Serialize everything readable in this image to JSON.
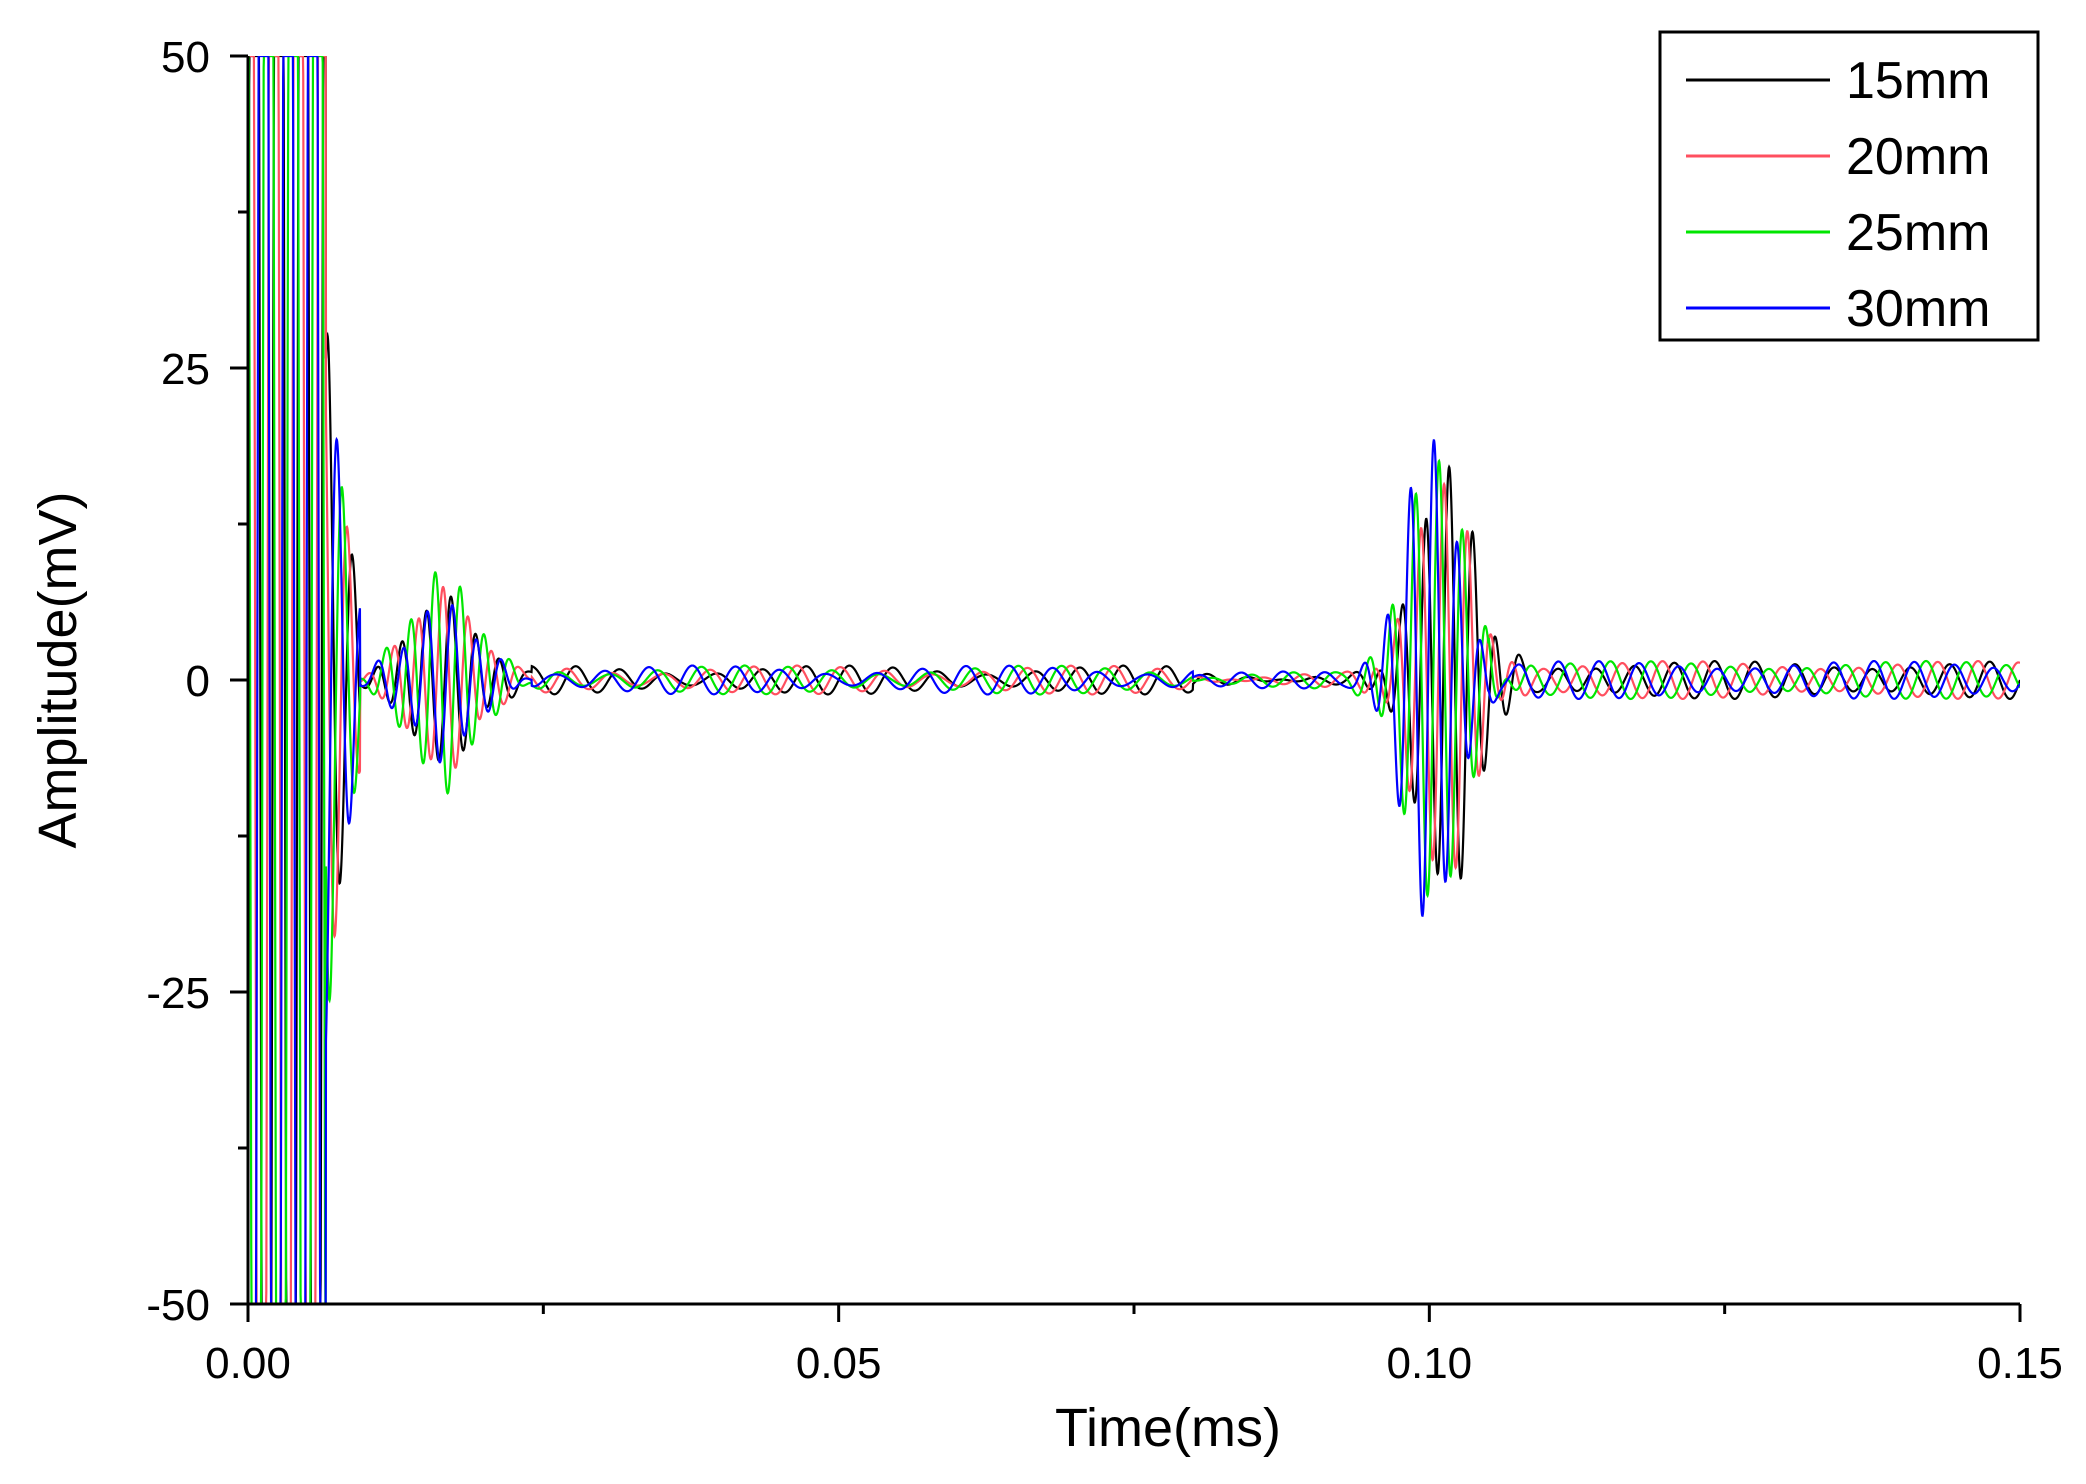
{
  "chart_data": {
    "type": "line",
    "xlabel": "Time(ms)",
    "ylabel": "Amplitude(mV)",
    "xlim": [
      0.0,
      0.15
    ],
    "ylim": [
      -50,
      50
    ],
    "x_ticks": [
      0.0,
      0.05,
      0.1,
      0.15
    ],
    "x_tick_labels": [
      "0.00",
      "0.05",
      "0.10",
      "0.15"
    ],
    "x_minor_step": 0.025,
    "y_ticks": [
      -50,
      -25,
      0,
      25,
      50
    ],
    "y_tick_labels": [
      "-50",
      "-25",
      "0",
      "25",
      "50"
    ],
    "y_minor_step": 12.5,
    "grid": false,
    "legend_position": "top-right",
    "series": [
      {
        "name": "15mm",
        "color": "#000000",
        "features": {
          "burst_center_ms": 0.1015,
          "burst_peak_mV": 17,
          "burst_width_ms": 0.0045,
          "ring_amp_mV": 6.5
        }
      },
      {
        "name": "20mm",
        "color": "#ff4f5f",
        "features": {
          "burst_center_ms": 0.1012,
          "burst_peak_mV": 16,
          "burst_width_ms": 0.0045,
          "ring_amp_mV": 7
        }
      },
      {
        "name": "25mm",
        "color": "#00e600",
        "features": {
          "burst_center_ms": 0.1005,
          "burst_peak_mV": 18,
          "burst_width_ms": 0.0045,
          "ring_amp_mV": 8.5
        }
      },
      {
        "name": "30mm",
        "color": "#0000ff",
        "features": {
          "burst_center_ms": 0.1,
          "burst_peak_mV": 19.5,
          "burst_width_ms": 0.004,
          "ring_amp_mV": 6
        }
      }
    ]
  }
}
